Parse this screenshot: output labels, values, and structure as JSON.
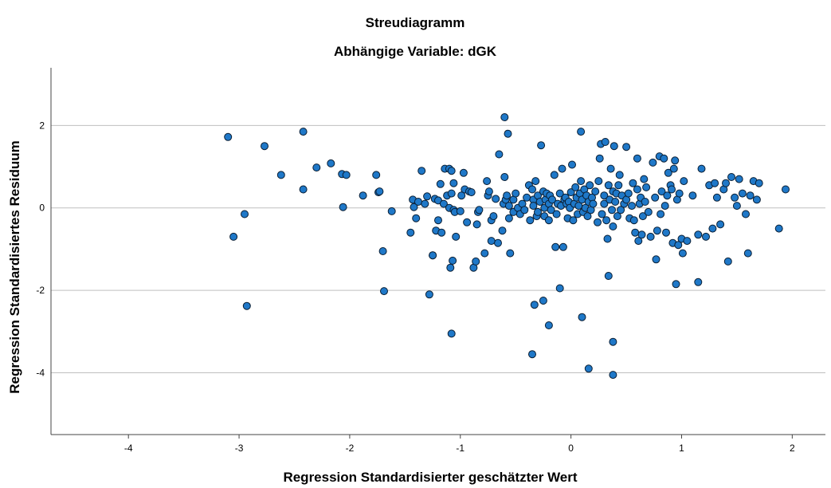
{
  "chart_data": {
    "type": "scatter",
    "title": "Streudiagramm",
    "subtitle": "Abhängige Variable: dGK",
    "xlabel": "Regression Standardisierter geschätzter Wert",
    "ylabel": "Regression Standardisiertes Residuum",
    "xlim": [
      -4.7,
      2.3
    ],
    "ylim": [
      -5.5,
      3.4
    ],
    "xticks": [
      -4,
      -3,
      -2,
      -1,
      0,
      1,
      2
    ],
    "yticks": [
      -4,
      -2,
      0,
      2
    ],
    "grid": "horizontal",
    "legend": "none",
    "marker_fill": "#1f78c8",
    "marker_stroke": "#0a1e33",
    "series": [
      {
        "x": [
          -3.1,
          -3.05,
          -2.95,
          -2.93,
          -2.77,
          -2.62,
          -2.42,
          -2.42,
          -2.3,
          -2.17,
          -2.07,
          -2.06,
          -2.03,
          -1.88,
          -1.76,
          -1.74,
          -1.73,
          -1.7,
          -1.69,
          -1.62,
          -1.45,
          -1.43,
          -1.42,
          -1.4,
          -1.38,
          -1.35,
          -1.32,
          -1.3,
          -1.28,
          -1.25,
          -1.23,
          -1.22,
          -1.2,
          -1.2,
          -1.18,
          -1.17,
          -1.15,
          -1.14,
          -1.12,
          -1.1,
          -1.1,
          -1.09,
          -1.08,
          -1.08,
          -1.07,
          -1.06,
          -1.06,
          -1.05,
          -1.04,
          -1.0,
          -0.99,
          -0.97,
          -0.96,
          -0.94,
          -0.92,
          -0.9,
          -0.88,
          -0.86,
          -0.84,
          -0.83,
          -0.78,
          -0.76,
          -0.75,
          -0.74,
          -0.72,
          -0.7,
          -0.68,
          -0.66,
          -0.62,
          -0.61,
          -0.6,
          -0.59,
          -0.58,
          -0.56,
          -0.56,
          -0.55,
          -0.52,
          -0.52,
          -0.5,
          -0.48,
          -0.46,
          -0.44,
          -0.42,
          -0.4,
          -0.38,
          -0.37,
          -0.35,
          -0.34,
          -0.34,
          -0.32,
          -0.31,
          -0.3,
          -0.3,
          -0.28,
          -0.27,
          -0.25,
          -0.24,
          -0.24,
          -0.23,
          -0.22,
          -0.2,
          -0.2,
          -0.19,
          -0.18,
          -0.17,
          -0.15,
          -0.13,
          -0.12,
          -0.1,
          -0.09,
          -0.08,
          -0.07,
          -0.06,
          -0.05,
          -0.04,
          -0.03,
          -0.02,
          -0.01,
          0.0,
          0.01,
          0.02,
          0.03,
          0.04,
          0.05,
          0.06,
          0.07,
          0.08,
          0.09,
          0.1,
          0.11,
          0.12,
          0.13,
          0.14,
          0.15,
          0.16,
          0.17,
          0.18,
          0.19,
          0.2,
          0.22,
          0.24,
          0.25,
          0.26,
          0.27,
          0.28,
          0.3,
          0.3,
          0.31,
          0.32,
          0.33,
          0.34,
          0.35,
          0.36,
          0.37,
          0.38,
          0.38,
          0.39,
          0.4,
          0.41,
          0.42,
          0.43,
          0.44,
          0.45,
          0.46,
          0.48,
          0.5,
          0.5,
          0.52,
          0.53,
          0.55,
          0.56,
          0.57,
          0.58,
          0.6,
          0.6,
          0.61,
          0.62,
          0.63,
          0.64,
          0.65,
          0.66,
          0.67,
          0.68,
          0.7,
          0.72,
          0.74,
          0.76,
          0.77,
          0.78,
          0.8,
          0.81,
          0.82,
          0.84,
          0.85,
          0.86,
          0.87,
          0.88,
          0.9,
          0.91,
          0.92,
          0.93,
          0.94,
          0.96,
          0.97,
          0.98,
          1.0,
          1.01,
          1.02,
          1.05,
          1.1,
          1.15,
          1.18,
          1.22,
          1.25,
          1.28,
          1.3,
          1.32,
          1.35,
          1.38,
          1.4,
          1.42,
          1.45,
          1.48,
          1.5,
          1.52,
          1.55,
          1.58,
          1.6,
          1.62,
          1.65,
          1.68,
          1.7,
          1.88,
          1.94,
          -0.6,
          -0.57,
          -0.14,
          0.09,
          -0.2,
          -0.25,
          -0.33,
          0.1,
          0.38,
          0.38,
          -0.1,
          -1.08,
          -0.35,
          0.16,
          -1.25,
          -0.65,
          -0.85,
          -0.72,
          0.34,
          0.95,
          1.15
        ],
        "y": [
          1.72,
          -0.7,
          -0.15,
          -2.38,
          1.5,
          0.8,
          1.85,
          0.45,
          0.98,
          1.08,
          0.82,
          0.02,
          0.8,
          0.3,
          0.8,
          0.38,
          0.4,
          -1.05,
          -2.02,
          -0.08,
          -0.6,
          0.2,
          0.02,
          -0.25,
          0.15,
          0.9,
          0.1,
          0.28,
          -2.1,
          -1.15,
          0.22,
          -0.55,
          -0.3,
          0.18,
          0.58,
          -0.6,
          0.1,
          0.95,
          0.3,
          0.95,
          0.0,
          -1.45,
          0.35,
          0.9,
          -1.28,
          0.6,
          -0.05,
          -0.1,
          -0.7,
          -0.08,
          0.3,
          0.85,
          0.45,
          -0.35,
          0.4,
          0.38,
          -1.45,
          -1.3,
          -0.1,
          -0.05,
          -1.1,
          0.65,
          0.3,
          0.4,
          -0.3,
          -0.2,
          0.22,
          -0.85,
          -0.55,
          0.1,
          0.75,
          0.2,
          0.3,
          -0.25,
          0.05,
          -1.1,
          0.2,
          -0.1,
          0.35,
          0.0,
          -0.15,
          0.1,
          -0.05,
          0.25,
          0.55,
          -0.3,
          0.45,
          0.2,
          0.05,
          0.65,
          -0.2,
          0.3,
          -0.1,
          0.15,
          1.52,
          0.4,
          -0.2,
          0.0,
          0.2,
          0.35,
          0.1,
          -0.3,
          0.3,
          -0.05,
          0.2,
          0.8,
          -0.15,
          0.1,
          0.35,
          0.05,
          0.95,
          -0.95,
          0.2,
          0.25,
          0.1,
          -0.25,
          0.15,
          0.0,
          0.38,
          1.05,
          -0.3,
          0.1,
          0.5,
          0.25,
          -0.15,
          0.05,
          0.35,
          0.65,
          0.2,
          -0.1,
          0.45,
          0.0,
          0.3,
          -0.2,
          0.15,
          0.55,
          -0.05,
          0.25,
          0.1,
          0.4,
          -0.35,
          0.65,
          1.2,
          1.55,
          -0.15,
          0.3,
          0.1,
          1.6,
          -0.3,
          -0.75,
          0.55,
          0.2,
          0.95,
          -0.05,
          0.4,
          -0.45,
          1.5,
          0.15,
          0.35,
          -0.2,
          0.55,
          0.8,
          -0.05,
          0.3,
          0.1,
          1.48,
          0.2,
          0.35,
          -0.25,
          0.05,
          0.6,
          -0.3,
          -0.6,
          1.2,
          0.45,
          -0.8,
          0.1,
          0.25,
          -0.65,
          -0.2,
          0.7,
          0.15,
          0.5,
          -0.1,
          -0.7,
          1.1,
          0.25,
          -1.25,
          -0.55,
          1.25,
          -0.15,
          0.4,
          1.2,
          0.05,
          -0.6,
          0.3,
          0.85,
          0.55,
          0.45,
          -0.85,
          0.95,
          1.15,
          0.2,
          -0.9,
          0.35,
          -0.75,
          -1.1,
          0.65,
          -0.8,
          0.3,
          -0.65,
          0.95,
          -0.7,
          0.55,
          -0.5,
          0.6,
          0.25,
          -0.4,
          0.45,
          0.6,
          -1.3,
          0.75,
          0.25,
          0.05,
          0.7,
          0.35,
          -0.15,
          -1.1,
          0.3,
          0.65,
          0.2,
          0.6,
          -0.5,
          0.45,
          2.2,
          1.8,
          -0.95,
          1.85,
          -2.85,
          -2.25,
          -2.35,
          -2.65,
          -3.25,
          -4.05,
          -1.95,
          -3.05,
          -3.55,
          -3.9,
          -1.15,
          1.3,
          -0.4,
          -0.8,
          -1.65,
          -1.85,
          -1.8
        ]
      }
    ]
  }
}
